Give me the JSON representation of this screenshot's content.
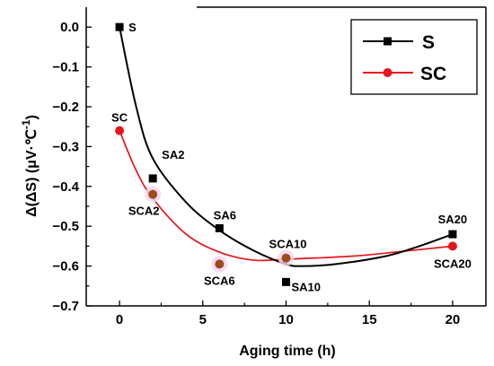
{
  "chart_data": {
    "type": "scatter",
    "xlabel": "Aging time (h)",
    "ylabel": "Δ(ΔS) (μV·℃",
    "ylabel_sup": "-1",
    "ylabel_close": ")",
    "xlim": [
      -2,
      22
    ],
    "ylim": [
      -0.7,
      0.05
    ],
    "xticks": [
      0,
      5,
      10,
      15,
      20
    ],
    "xtick_labels": [
      "0",
      "5",
      "10",
      "15",
      "20"
    ],
    "yticks": [
      0.0,
      -0.1,
      -0.2,
      -0.3,
      -0.4,
      -0.5,
      -0.6,
      -0.7
    ],
    "ytick_labels": [
      "0.0",
      "−0.1",
      "−0.2",
      "−0.3",
      "−0.4",
      "−0.5",
      "−0.6",
      "−0.7"
    ],
    "legend_position": "top-right",
    "series": [
      {
        "name": "S",
        "color": "#000000",
        "marker": "square",
        "x": [
          0,
          2,
          6,
          10,
          20
        ],
        "y": [
          0.0,
          -0.38,
          -0.505,
          -0.64,
          -0.52
        ],
        "labels": [
          "S",
          "SA2",
          "SA6",
          "SA10",
          "SA20"
        ],
        "curve": [
          [
            0,
            0.0
          ],
          [
            1,
            -0.2
          ],
          [
            2,
            -0.33
          ],
          [
            4,
            -0.44
          ],
          [
            6,
            -0.51
          ],
          [
            8,
            -0.56
          ],
          [
            10,
            -0.595
          ],
          [
            11,
            -0.6
          ],
          [
            13,
            -0.595
          ],
          [
            16,
            -0.575
          ],
          [
            18,
            -0.55
          ],
          [
            20,
            -0.52
          ]
        ]
      },
      {
        "name": "SC",
        "color": "#e8141c",
        "marker": "circle",
        "x": [
          0,
          2,
          6,
          10,
          20
        ],
        "y": [
          -0.26,
          -0.42,
          -0.595,
          -0.58,
          -0.55
        ],
        "labels": [
          "SC",
          "SCA2",
          "SCA6",
          "SCA10",
          "SCA20"
        ],
        "point_colors": [
          "#e8141c",
          "#9b4d1a",
          "#9b4d1a",
          "#9b4d1a",
          "#e8141c"
        ],
        "curve": [
          [
            0,
            -0.26
          ],
          [
            1,
            -0.36
          ],
          [
            2,
            -0.43
          ],
          [
            4,
            -0.52
          ],
          [
            6,
            -0.565
          ],
          [
            8,
            -0.585
          ],
          [
            10,
            -0.583
          ],
          [
            14,
            -0.575
          ],
          [
            17,
            -0.563
          ],
          [
            20,
            -0.55
          ]
        ]
      }
    ]
  }
}
